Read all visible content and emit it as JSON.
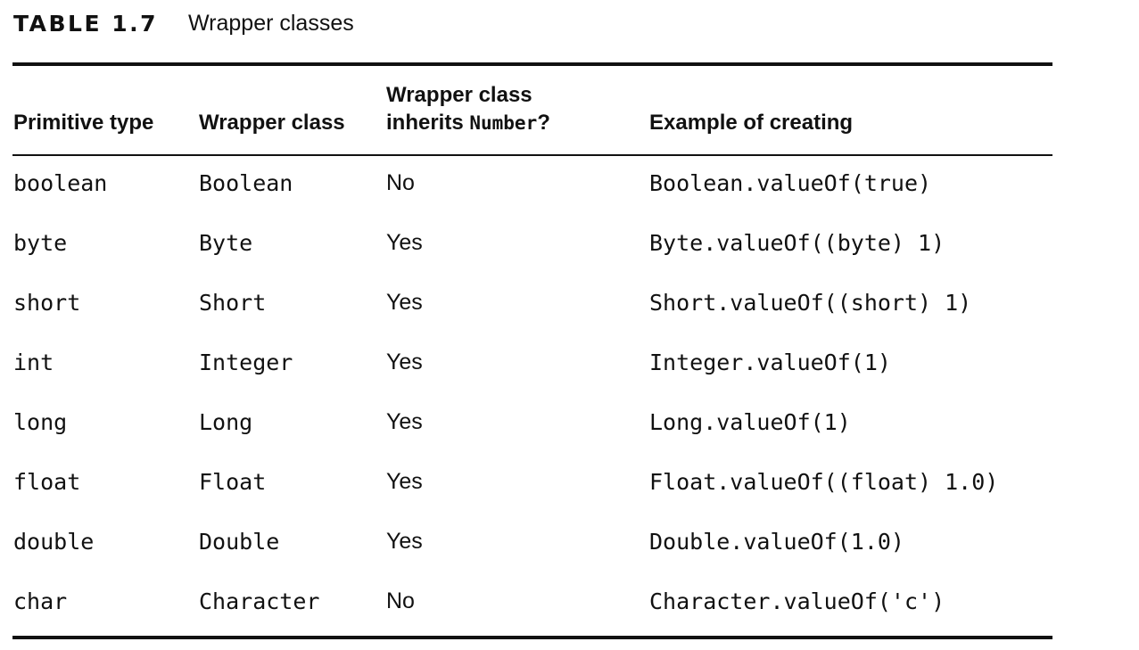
{
  "caption": {
    "label": "TABLE 1.7",
    "title": "Wrapper classes"
  },
  "table": {
    "headers": {
      "primitive": "Primitive type",
      "wrapper": "Wrapper class",
      "inherits_line1": "Wrapper class",
      "inherits_line2_prefix": "inherits ",
      "inherits_line2_code": "Number",
      "inherits_line2_suffix": "?",
      "example": "Example of creating"
    },
    "rows": [
      {
        "primitive": "boolean",
        "wrapper": "Boolean",
        "inherits": "No",
        "example": "Boolean.valueOf(true)"
      },
      {
        "primitive": "byte",
        "wrapper": "Byte",
        "inherits": "Yes",
        "example": "Byte.valueOf((byte) 1)"
      },
      {
        "primitive": "short",
        "wrapper": "Short",
        "inherits": "Yes",
        "example": "Short.valueOf((short) 1)"
      },
      {
        "primitive": "int",
        "wrapper": "Integer",
        "inherits": "Yes",
        "example": "Integer.valueOf(1)"
      },
      {
        "primitive": "long",
        "wrapper": "Long",
        "inherits": "Yes",
        "example": "Long.valueOf(1)"
      },
      {
        "primitive": "float",
        "wrapper": "Float",
        "inherits": "Yes",
        "example": "Float.valueOf((float) 1.0)"
      },
      {
        "primitive": "double",
        "wrapper": "Double",
        "inherits": "Yes",
        "example": "Double.valueOf(1.0)"
      },
      {
        "primitive": "char",
        "wrapper": "Character",
        "inherits": "No",
        "example": "Character.valueOf('c')"
      }
    ]
  }
}
